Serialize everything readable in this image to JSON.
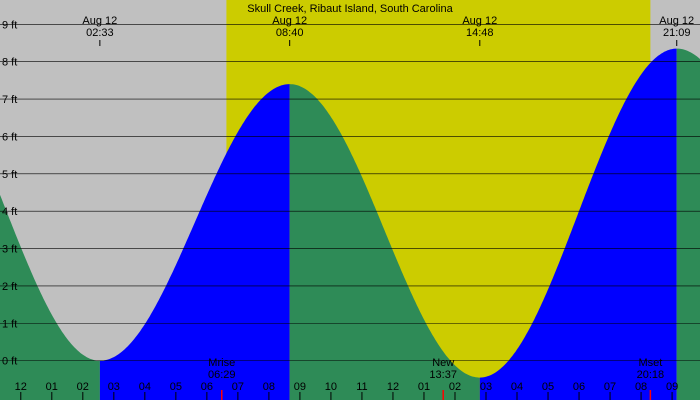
{
  "chart_data": {
    "type": "area",
    "title": "Skull Creek, Ribaut Island, South Carolina",
    "ylabel": "",
    "xlabel": "",
    "y_unit": "ft",
    "ylim": [
      -1.05,
      9.65
    ],
    "xlim_hours": [
      -0.67,
      21.9
    ],
    "y_ticks": [
      {
        "v": 0,
        "label": "0 ft"
      },
      {
        "v": 1,
        "label": "1 ft"
      },
      {
        "v": 2,
        "label": "2 ft"
      },
      {
        "v": 3,
        "label": "3 ft"
      },
      {
        "v": 4,
        "label": "4 ft"
      },
      {
        "v": 5,
        "label": "5 ft"
      },
      {
        "v": 6,
        "label": "6 ft"
      },
      {
        "v": 7,
        "label": "7 ft"
      },
      {
        "v": 8,
        "label": "8 ft"
      },
      {
        "v": 9,
        "label": "9 ft"
      }
    ],
    "x_ticks": [
      {
        "h": -1,
        "label": "11"
      },
      {
        "h": 0,
        "label": "12"
      },
      {
        "h": 1,
        "label": "01"
      },
      {
        "h": 2,
        "label": "02"
      },
      {
        "h": 3,
        "label": "03"
      },
      {
        "h": 4,
        "label": "04"
      },
      {
        "h": 5,
        "label": "05"
      },
      {
        "h": 6,
        "label": "06"
      },
      {
        "h": 7,
        "label": "07"
      },
      {
        "h": 8,
        "label": "08"
      },
      {
        "h": 9,
        "label": "09"
      },
      {
        "h": 10,
        "label": "10"
      },
      {
        "h": 11,
        "label": "11"
      },
      {
        "h": 12,
        "label": "12"
      },
      {
        "h": 13,
        "label": "01"
      },
      {
        "h": 14,
        "label": "02"
      },
      {
        "h": 15,
        "label": "03"
      },
      {
        "h": 16,
        "label": "04"
      },
      {
        "h": 17,
        "label": "05"
      },
      {
        "h": 18,
        "label": "06"
      },
      {
        "h": 19,
        "label": "07"
      },
      {
        "h": 20,
        "label": "08"
      },
      {
        "h": 21,
        "label": "09"
      }
    ],
    "tides": [
      {
        "date": "Aug 12",
        "time": "02:33",
        "hour": 2.55,
        "height_ft": 0.0,
        "type": "low"
      },
      {
        "date": "Aug 12",
        "time": "08:40",
        "hour": 8.67,
        "height_ft": 7.4,
        "type": "high"
      },
      {
        "date": "Aug 12",
        "time": "14:48",
        "hour": 14.8,
        "height_ft": -0.45,
        "type": "low"
      },
      {
        "date": "Aug 12",
        "time": "21:09",
        "hour": 21.15,
        "height_ft": 8.35,
        "type": "high"
      }
    ],
    "start_height_ft": 5.0,
    "daylight_hours": [
      6.63,
      20.3
    ],
    "events": [
      {
        "name": "Mrise",
        "time": "06:29",
        "hour": 6.48
      },
      {
        "name": "New",
        "time": "13:37",
        "hour": 13.62
      },
      {
        "name": "Mset",
        "time": "20:18",
        "hour": 20.3
      }
    ],
    "colors": {
      "night": "#c0c0c0",
      "day": "#cccc00",
      "falling": "#2e8b57",
      "rising": "#0000ff",
      "grid": "#000000",
      "tick_day": "#ff0000",
      "tick_night": "#000000"
    }
  }
}
